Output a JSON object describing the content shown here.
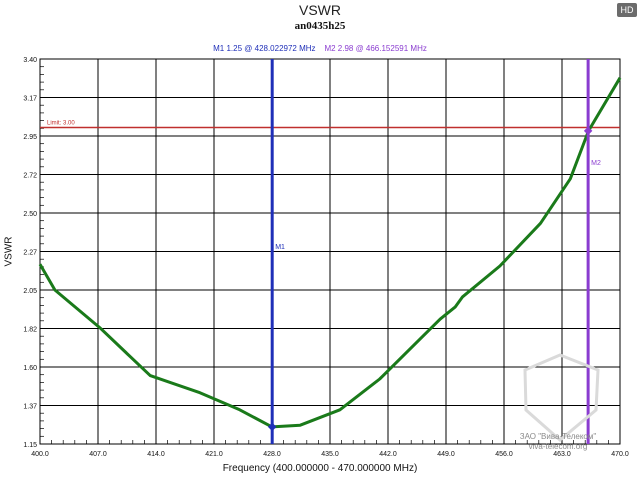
{
  "header": {
    "title": "VSWR",
    "subtitle": "an0435h25",
    "hd_badge": "HD"
  },
  "markers_legend": {
    "m1": "M1  1.25 @ 428.022972 MHz",
    "m2": "M2  2.98 @ 466.152591 MHz"
  },
  "axes": {
    "xlabel": "Frequency (400.000000 - 470.000000 MHz)",
    "ylabel": "VSWR"
  },
  "watermark": {
    "line1": "ЗАО \"Вива-Телеком\"",
    "line2": "viva-telecom.org"
  },
  "colors": {
    "trace": "#1a7a1a",
    "m1": "#1f2fb8",
    "m2": "#8a3cd0",
    "limit": "#c0302e",
    "grid": "#000000"
  },
  "chart_data": {
    "type": "line",
    "title": "VSWR",
    "subtitle": "an0435h25",
    "xlabel": "Frequency (400.000000 - 470.000000 MHz)",
    "ylabel": "VSWR",
    "xlim": [
      400.0,
      470.0
    ],
    "ylim": [
      1.15,
      3.4
    ],
    "x_ticks": [
      "400.0",
      "407.0",
      "414.0",
      "421.0",
      "428.0",
      "435.0",
      "442.0",
      "449.0",
      "456.0",
      "463.0",
      "470.0"
    ],
    "y_ticks": [
      "3.40",
      "3.17",
      "2.95",
      "2.72",
      "2.50",
      "2.27",
      "2.05",
      "1.82",
      "1.60",
      "1.37",
      "1.15"
    ],
    "grid": true,
    "limit_line": {
      "label": "Limit: 3.00",
      "value": 3.0
    },
    "markers": [
      {
        "name": "M1",
        "value": 1.25,
        "freq_mhz": 428.022972
      },
      {
        "name": "M2",
        "value": 2.98,
        "freq_mhz": 466.152591
      }
    ],
    "series": [
      {
        "name": "VSWR",
        "x": [
          400.0,
          401.8,
          407.2,
          413.3,
          419.3,
          424.1,
          428.0,
          431.4,
          436.2,
          441.0,
          445.8,
          448.3,
          450.1,
          451.0,
          455.5,
          460.4,
          464.0,
          466.2,
          470.0
        ],
        "values": [
          2.2,
          2.05,
          1.83,
          1.55,
          1.45,
          1.35,
          1.25,
          1.26,
          1.35,
          1.53,
          1.76,
          1.88,
          1.95,
          2.01,
          2.19,
          2.44,
          2.7,
          2.98,
          3.29
        ]
      }
    ]
  }
}
